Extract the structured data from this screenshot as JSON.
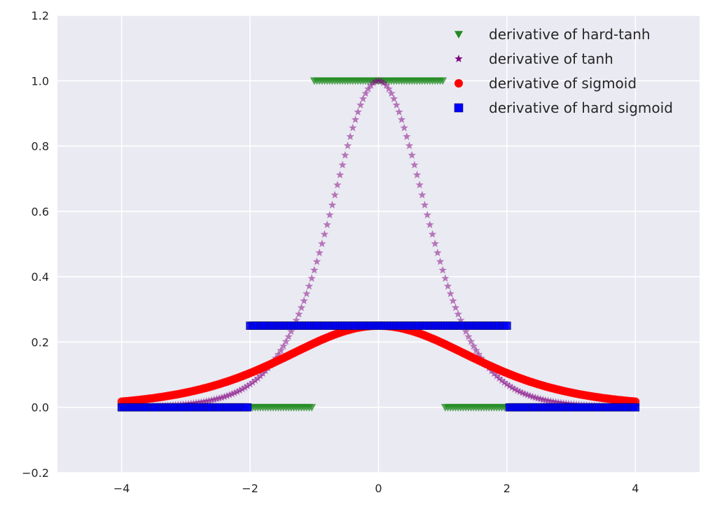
{
  "chart_data": {
    "type": "scatter",
    "title": "",
    "xlabel": "",
    "ylabel": "",
    "xlim": [
      -5,
      5
    ],
    "ylim": [
      -0.2,
      1.2
    ],
    "xticks": [
      -4,
      -2,
      0,
      2,
      4
    ],
    "xtick_labels": [
      "−4",
      "−2",
      "0",
      "2",
      "4"
    ],
    "yticks": [
      -0.2,
      0.0,
      0.2,
      0.4,
      0.6,
      0.8,
      1.0,
      1.2
    ],
    "ytick_labels": [
      "−0.2",
      "0.0",
      "0.2",
      "0.4",
      "0.6",
      "0.8",
      "1.0",
      "1.2"
    ],
    "grid": true,
    "legend_position": "top-right",
    "x_range": [
      -4,
      4
    ],
    "n_points": 201,
    "series": [
      {
        "name": "derivative of hard-tanh",
        "function": "1 if |x| <= 1 else 0",
        "marker": "triangle-down",
        "color": "#228b22"
      },
      {
        "name": "derivative of tanh",
        "function": "1 - tanh(x)^2",
        "marker": "star",
        "color": "#800080"
      },
      {
        "name": "derivative of sigmoid",
        "function": "sigmoid(x) * (1 - sigmoid(x))",
        "marker": "circle",
        "color": "#ff0000"
      },
      {
        "name": "derivative of hard sigmoid",
        "function": "0.25 if |x| <= 2 else 0",
        "marker": "square",
        "color": "#0000ff"
      }
    ]
  }
}
